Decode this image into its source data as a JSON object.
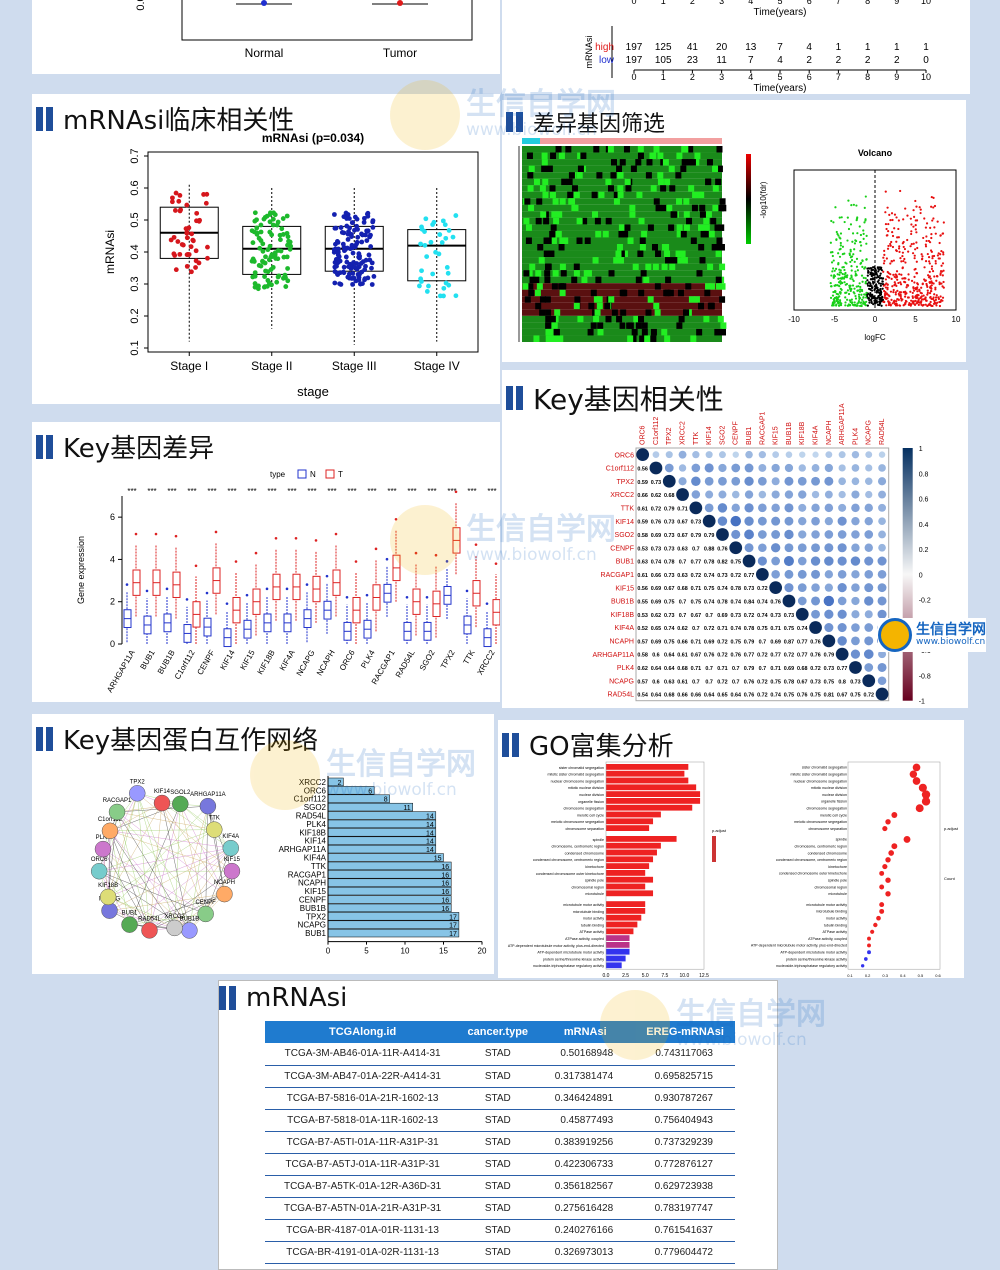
{
  "watermark": {
    "title": "生信自学网",
    "url": "www.biowolf.cn"
  },
  "sections": {
    "clinical": "mRNAsi临床相关性",
    "deg": "差异基因筛选",
    "keycorr": "Key基因相关性",
    "keydiff": "Key基因差异",
    "ppi": "Key基因蛋白互作网络",
    "go": "GO富集分析",
    "mrnasi": "mRNAsi"
  },
  "top_left": {
    "ytick": "0.0",
    "categories": [
      "Normal",
      "Tumor"
    ],
    "colors": [
      "#1f2fd0",
      "#e01a1a"
    ]
  },
  "survival_risk": {
    "xlabel": "Time(years)",
    "ylabel": "mRNAsi",
    "times": [
      "0",
      "1",
      "2",
      "3",
      "4",
      "5",
      "6",
      "7",
      "8",
      "9",
      "10"
    ],
    "top_axis_ticks": [
      "0",
      "1",
      "2",
      "3",
      "4",
      "5",
      "6",
      "7",
      "8",
      "9",
      "10"
    ],
    "rows": [
      {
        "name": "high",
        "color": "#e01a1a",
        "values": [
          "197",
          "125",
          "41",
          "20",
          "13",
          "7",
          "4",
          "1",
          "1",
          "1",
          "1"
        ]
      },
      {
        "name": "low",
        "color": "#1f2fd0",
        "values": [
          "197",
          "105",
          "23",
          "11",
          "7",
          "4",
          "2",
          "2",
          "2",
          "2",
          "0"
        ]
      }
    ]
  },
  "chart_data": [
    {
      "type": "box",
      "title": "mRNAsi (p=0.034)",
      "xlabel": "stage",
      "ylabel": "mRNAsi",
      "ylim": [
        0.1,
        0.7
      ],
      "yticks": [
        "0.1",
        "0.2",
        "0.3",
        "0.4",
        "0.5",
        "0.6",
        "0.7"
      ],
      "categories": [
        "Stage I",
        "Stage II",
        "Stage III",
        "Stage IV"
      ],
      "colors": [
        "#d6161c",
        "#1db92c",
        "#1421b0",
        "#22e0f0"
      ],
      "boxes": [
        {
          "min": 0.12,
          "q1": 0.38,
          "median": 0.46,
          "q3": 0.54,
          "max": 0.61
        },
        {
          "min": 0.16,
          "q1": 0.33,
          "median": 0.41,
          "q3": 0.48,
          "max": 0.6
        },
        {
          "min": 0.11,
          "q1": 0.34,
          "median": 0.41,
          "q3": 0.48,
          "max": 0.6
        },
        {
          "min": 0.12,
          "q1": 0.31,
          "median": 0.42,
          "q3": 0.47,
          "max": 0.6
        }
      ]
    },
    {
      "type": "box",
      "xlabel": "",
      "ylabel": "Gene expression",
      "ylim": [
        0,
        7
      ],
      "yticks": [
        "0",
        "2",
        "4",
        "6"
      ],
      "legend": {
        "title": "type",
        "entries": [
          "N",
          "T"
        ],
        "colors": [
          "#2233cc",
          "#dd2222"
        ]
      },
      "significance": "***",
      "categories": [
        "ARHGAP11A",
        "BUB1",
        "BUB1B",
        "C1orf112",
        "CENPF",
        "KIF14",
        "KIF15",
        "KIF18B",
        "KIF4A",
        "NCAPG",
        "NCAPH",
        "ORC6",
        "PLK4",
        "RACGAP1",
        "RAD54L",
        "SGO2",
        "TPX2",
        "TTK",
        "XRCC2"
      ],
      "series": [
        {
          "name": "N",
          "medians": [
            1.2,
            0.9,
            1.0,
            0.5,
            0.8,
            0.3,
            0.7,
            1.0,
            1.0,
            1.2,
            1.6,
            0.6,
            0.7,
            2.4,
            0.6,
            0.6,
            2.3,
            0.9,
            0.3
          ]
        },
        {
          "name": "T",
          "medians": [
            2.9,
            2.9,
            2.8,
            1.4,
            3.0,
            1.6,
            2.0,
            2.7,
            2.7,
            2.6,
            2.9,
            1.6,
            2.2,
            3.6,
            2.0,
            1.9,
            4.9,
            2.4,
            1.5
          ]
        }
      ]
    },
    {
      "type": "heatmap",
      "title": "",
      "genes": [
        "ORC6",
        "C1orf112",
        "TPX2",
        "XRCC2",
        "TTK",
        "KIF14",
        "SGO2",
        "CENPF",
        "BUB1",
        "RACGAP1",
        "KIF15",
        "BUB1B",
        "KIF18B",
        "KIF4A",
        "NCAPH",
        "ARHGAP11A",
        "PLK4",
        "NCAPG",
        "RAD54L"
      ],
      "lower_triangle": [
        [],
        [
          "0.56"
        ],
        [
          "0.59",
          "0.73"
        ],
        [
          "0.66",
          "0.62",
          "0.68"
        ],
        [
          "0.61",
          "0.72",
          "0.79",
          "0.71"
        ],
        [
          "0.59",
          "0.76",
          "0.73",
          "0.67",
          "0.73"
        ],
        [
          "0.58",
          "0.69",
          "0.73",
          "0.67",
          "0.79",
          "0.79"
        ],
        [
          "0.53",
          "0.73",
          "0.73",
          "0.63",
          "0.7",
          "0.88",
          "0.76"
        ],
        [
          "0.63",
          "0.74",
          "0.78",
          "0.7",
          "0.77",
          "0.78",
          "0.82",
          "0.75"
        ],
        [
          "0.61",
          "0.66",
          "0.73",
          "0.63",
          "0.72",
          "0.74",
          "0.73",
          "0.72",
          "0.77"
        ],
        [
          "0.56",
          "0.69",
          "0.67",
          "0.68",
          "0.71",
          "0.75",
          "0.74",
          "0.78",
          "0.73",
          "0.72"
        ],
        [
          "0.55",
          "0.69",
          "0.75",
          "0.7",
          "0.75",
          "0.74",
          "0.78",
          "0.74",
          "0.84",
          "0.74",
          "0.76"
        ],
        [
          "0.53",
          "0.62",
          "0.73",
          "0.7",
          "0.67",
          "0.7",
          "0.69",
          "0.73",
          "0.72",
          "0.74",
          "0.73",
          "0.73"
        ],
        [
          "0.52",
          "0.65",
          "0.74",
          "0.62",
          "0.7",
          "0.72",
          "0.71",
          "0.74",
          "0.78",
          "0.75",
          "0.71",
          "0.75",
          "0.74"
        ],
        [
          "0.57",
          "0.69",
          "0.75",
          "0.66",
          "0.71",
          "0.69",
          "0.72",
          "0.75",
          "0.79",
          "0.7",
          "0.69",
          "0.87",
          "0.77",
          "0.76"
        ],
        [
          "0.58",
          "0.6",
          "0.64",
          "0.61",
          "0.67",
          "0.76",
          "0.72",
          "0.76",
          "0.77",
          "0.72",
          "0.77",
          "0.72",
          "0.77",
          "0.76",
          "0.79"
        ],
        [
          "0.62",
          "0.64",
          "0.64",
          "0.68",
          "0.71",
          "0.7",
          "0.71",
          "0.7",
          "0.79",
          "0.7",
          "0.71",
          "0.69",
          "0.68",
          "0.72",
          "0.73",
          "0.77"
        ],
        [
          "0.57",
          "0.6",
          "0.63",
          "0.61",
          "0.7",
          "0.7",
          "0.72",
          "0.7",
          "0.76",
          "0.72",
          "0.75",
          "0.78",
          "0.67",
          "0.73",
          "0.75",
          "0.8",
          "0.73"
        ],
        [
          "0.54",
          "0.64",
          "0.68",
          "0.66",
          "0.66",
          "0.64",
          "0.65",
          "0.64",
          "0.76",
          "0.72",
          "0.74",
          "0.75",
          "0.76",
          "0.75",
          "0.81",
          "0.67",
          "0.75",
          "0.72"
        ]
      ],
      "colorbar_ticks": [
        "1",
        "0.8",
        "0.6",
        "0.4",
        "0.2",
        "0",
        "-0.2",
        "-0.4",
        "-0.6",
        "-0.8",
        "-1"
      ]
    },
    {
      "type": "bar",
      "orientation": "horizontal",
      "categories": [
        "XRCC2",
        "ORC6",
        "C1orf112",
        "SGO2",
        "RAD54L",
        "PLK4",
        "KIF18B",
        "KIF14",
        "ARHGAP11A",
        "KIF4A",
        "TTK",
        "RACGAP1",
        "NCAPH",
        "KIF15",
        "CENPF",
        "BUB1B",
        "TPX2",
        "NCAPG",
        "BUB1"
      ],
      "values": [
        2,
        6,
        8,
        11,
        14,
        14,
        14,
        14,
        14,
        15,
        16,
        16,
        16,
        16,
        16,
        16,
        17,
        17,
        17
      ],
      "xlim": [
        0,
        20
      ],
      "xticks": [
        "0",
        "5",
        "10",
        "15",
        "20"
      ],
      "color": "#87c4e6"
    },
    {
      "type": "scatter",
      "title": "Volcano",
      "xlabel": "logFC",
      "ylabel": "-log10(fdr)",
      "xlim": [
        -10,
        10
      ],
      "xticks": [
        "-10",
        "-5",
        "0",
        "5",
        "10"
      ],
      "series": [
        {
          "name": "down",
          "color": "#18d018"
        },
        {
          "name": "up",
          "color": "#e81010"
        },
        {
          "name": "ns",
          "color": "#000000"
        }
      ]
    },
    {
      "type": "bar",
      "orientation": "horizontal",
      "go_terms": [
        "sister chromatid segregation",
        "mitotic sister chromatid segregation",
        "nuclear chromosome segregation",
        "mitotic nuclear division",
        "nuclear division",
        "organelle fission",
        "chromosome segregation",
        "meiotic cell cycle",
        "meiotic chromosome segregation",
        "chromosome separation",
        "spindle",
        "chromosome, centromeric region",
        "condensed chromosome",
        "condensed chromosome, centromeric region",
        "kinetochore",
        "condensed chromosome outer kinetochore",
        "spindle pole",
        "chromosomal region",
        "microtubule",
        "microtubule motor activity",
        "microtubule binding",
        "motor activity",
        "tubulin binding",
        "ATPase activity",
        "ATPase activity, coupled",
        "ATP-dependent microtubule motor activity, plus-end-directed",
        "ATP-dependent microtubule motor activity",
        "protein serine/threonine kinase activity",
        "nucleoside-triphosphatase regulatory activity"
      ],
      "go_values": [
        10.5,
        10,
        10.5,
        11.5,
        12,
        12,
        11,
        7,
        6,
        5.5,
        9,
        7,
        6.5,
        6,
        5.5,
        5,
        6,
        5,
        6,
        5,
        5,
        4.5,
        4,
        3.5,
        3,
        3,
        3,
        2.5,
        2
      ],
      "xticks": [
        "0.0",
        "2.5",
        "5.0",
        "7.5",
        "10.0",
        "12.5"
      ],
      "legend_title": "p.adjust",
      "dot_legend_titles": [
        "p.adjust",
        "Count"
      ],
      "dot_xlabel": "GeneRatio",
      "dot_xticks": [
        "0.1",
        "0.2",
        "0.3",
        "0.4",
        "0.5",
        "0.6"
      ]
    }
  ],
  "ppi_nodes": [
    "KIF14",
    "SGOL2",
    "ARHGAP11A",
    "TTK",
    "KIF4A",
    "KIF15",
    "NCAPH",
    "CENPF",
    "BUB1B",
    "XRCC2",
    "RAD54L",
    "BUB1",
    "NCAPG",
    "KIF18B",
    "ORC6",
    "PLK4",
    "C1orf112",
    "RACGAP1",
    "TPX2"
  ],
  "mrnasi_table": {
    "columns": [
      "TCGAlong.id",
      "cancer.type",
      "mRNAsi",
      "EREG-mRNAsi"
    ],
    "rows": [
      [
        "TCGA-3M-AB46-01A-11R-A414-31",
        "STAD",
        "0.50168948",
        "0.743117063"
      ],
      [
        "TCGA-3M-AB47-01A-22R-A414-31",
        "STAD",
        "0.317381474",
        "0.695825715"
      ],
      [
        "TCGA-B7-5816-01A-21R-1602-13",
        "STAD",
        "0.346424891",
        "0.930787267"
      ],
      [
        "TCGA-B7-5818-01A-11R-1602-13",
        "STAD",
        "0.45877493",
        "0.756404943"
      ],
      [
        "TCGA-B7-A5TI-01A-11R-A31P-31",
        "STAD",
        "0.383919256",
        "0.737329239"
      ],
      [
        "TCGA-B7-A5TJ-01A-11R-A31P-31",
        "STAD",
        "0.422306733",
        "0.772876127"
      ],
      [
        "TCGA-B7-A5TK-01A-12R-A36D-31",
        "STAD",
        "0.356182567",
        "0.629723938"
      ],
      [
        "TCGA-B7-A5TN-01A-21R-A31P-31",
        "STAD",
        "0.275616428",
        "0.783197747"
      ],
      [
        "TCGA-BR-4187-01A-01R-1131-13",
        "STAD",
        "0.240276166",
        "0.761541637"
      ],
      [
        "TCGA-BR-4191-01A-02R-1131-13",
        "STAD",
        "0.326973013",
        "0.779604472"
      ]
    ]
  }
}
